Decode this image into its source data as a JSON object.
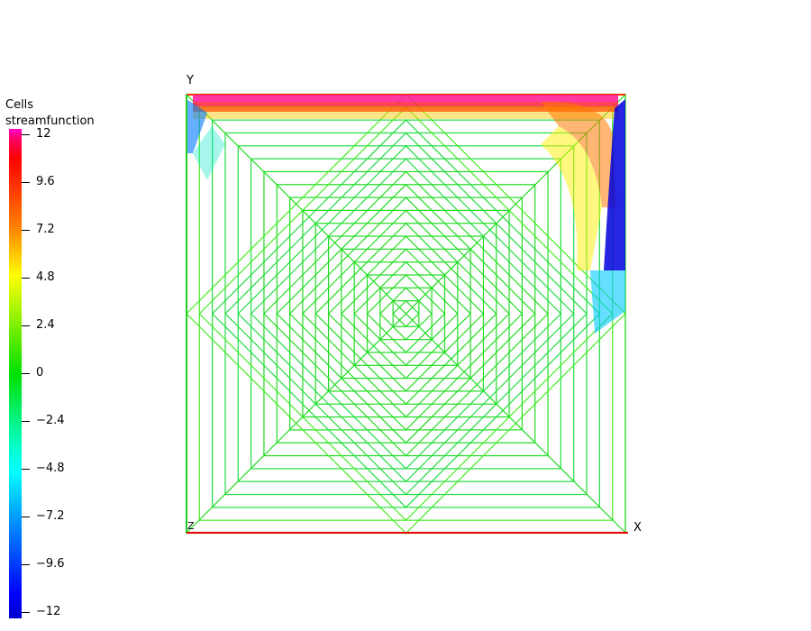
{
  "legend": {
    "title_line1": "Cells",
    "title_line2": "streamfunction",
    "ticks": [
      "12",
      "9.6",
      "7.2",
      "4.8",
      "2.4",
      "0",
      "−2.4",
      "−4.8",
      "−7.2",
      "−9.6",
      "−12"
    ],
    "range": [
      -12,
      12
    ]
  },
  "axes": {
    "x": "X",
    "y": "Y",
    "z": "Z"
  },
  "colors": {
    "mesh_main": "#22dd22",
    "mesh_border": "#ff3300",
    "top_lid": "#ff1493",
    "right_wall": "#0000dd"
  }
}
